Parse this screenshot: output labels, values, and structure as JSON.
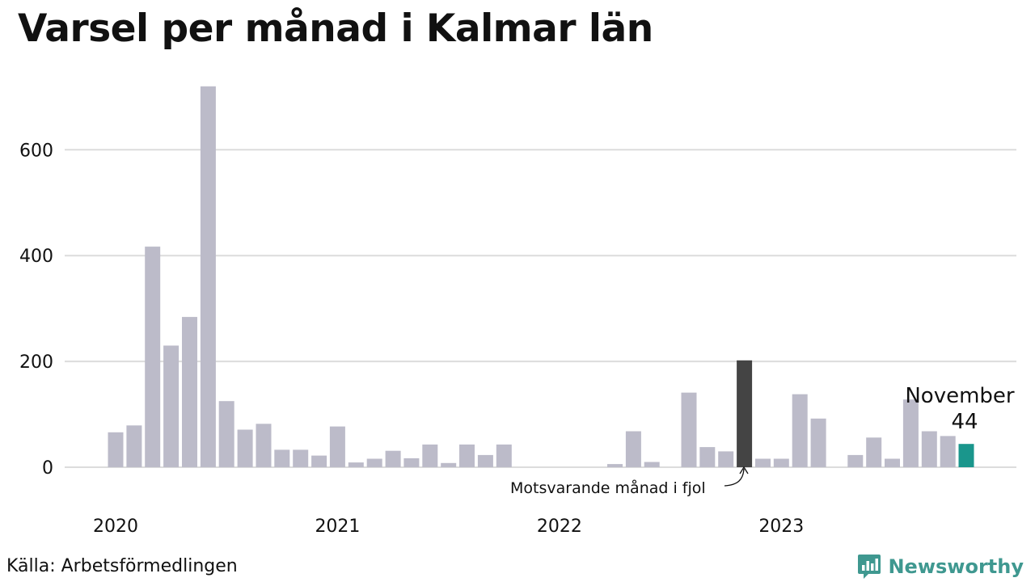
{
  "title": "Varsel per månad i Kalmar län",
  "source": "Källa: Arbetsförmedlingen",
  "brand": {
    "name": "Newsworthy",
    "icon": "newsworthy-logo-icon",
    "color": "#3f9890"
  },
  "colors": {
    "bar": "#bcbbc9",
    "previous_year": "#444444",
    "current": "#1a968c",
    "grid": "#dcdcdc"
  },
  "annotations": {
    "previous_year_label": "Motsvarande månad i fjol",
    "current_label_month": "November",
    "current_label_value": "44"
  },
  "chart_data": {
    "type": "bar",
    "title": "Varsel per månad i Kalmar län",
    "xlabel": "",
    "ylabel": "",
    "ylim": [
      0,
      720
    ],
    "yticks": [
      0,
      200,
      400,
      600
    ],
    "grid": true,
    "x_tick_labels": [
      "2020",
      "2021",
      "2022",
      "2023"
    ],
    "categories": [
      "2020-01",
      "2020-02",
      "2020-03",
      "2020-04",
      "2020-05",
      "2020-06",
      "2020-07",
      "2020-08",
      "2020-09",
      "2020-10",
      "2020-11",
      "2020-12",
      "2021-01",
      "2021-02",
      "2021-03",
      "2021-04",
      "2021-05",
      "2021-06",
      "2021-07",
      "2021-08",
      "2021-09",
      "2021-10",
      "2021-11",
      "2021-12",
      "2022-01",
      "2022-02",
      "2022-03",
      "2022-04",
      "2022-05",
      "2022-06",
      "2022-07",
      "2022-08",
      "2022-09",
      "2022-10",
      "2022-11",
      "2022-12",
      "2023-01",
      "2023-02",
      "2023-03",
      "2023-04",
      "2023-05",
      "2023-06",
      "2023-07",
      "2023-08",
      "2023-09",
      "2023-10",
      "2023-11"
    ],
    "values": [
      66,
      79,
      417,
      230,
      284,
      720,
      125,
      71,
      82,
      33,
      33,
      22,
      77,
      9,
      16,
      31,
      17,
      43,
      8,
      43,
      23,
      43,
      0,
      0,
      0,
      0,
      0,
      6,
      68,
      10,
      0,
      141,
      38,
      30,
      202,
      16,
      16,
      138,
      92,
      0,
      23,
      56,
      16,
      128,
      68,
      59,
      44
    ],
    "highlight": {
      "previous_year_index": 34,
      "current_index": 46
    }
  }
}
